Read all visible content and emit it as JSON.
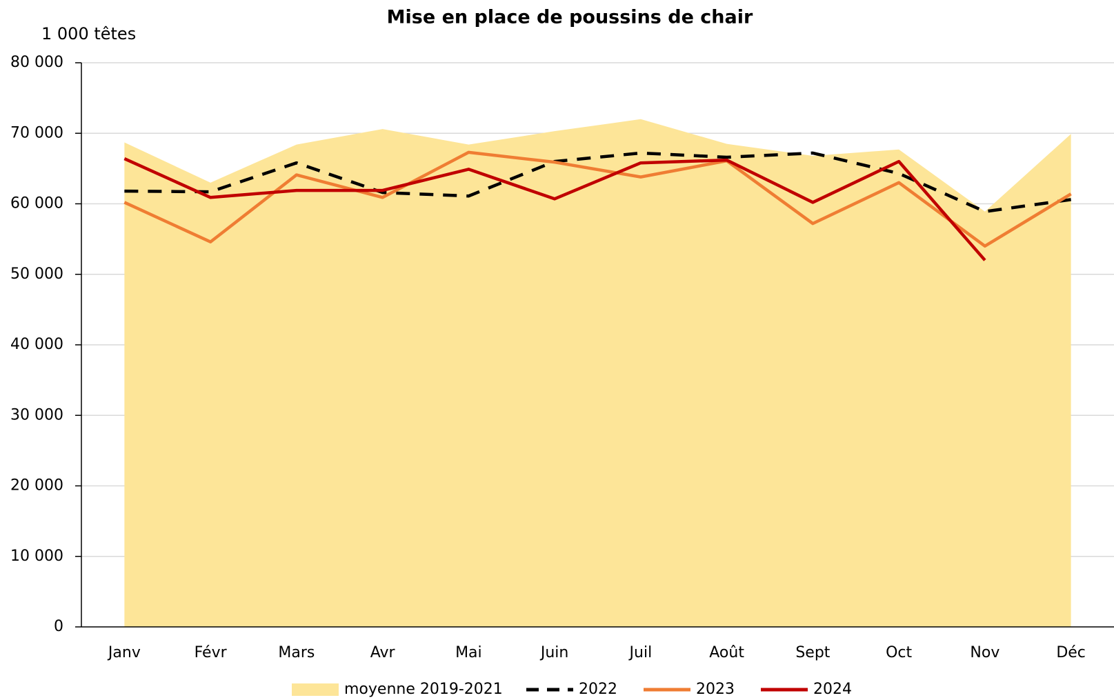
{
  "chart_data": {
    "type": "line",
    "title": "Mise en place de poussins de chair",
    "y_label": "1 000 têtes",
    "categories": [
      "Janv",
      "Févr",
      "Mars",
      "Avr",
      "Mai",
      "Juin",
      "Juil",
      "Août",
      "Sept",
      "Oct",
      "Nov",
      "Déc"
    ],
    "series": [
      {
        "name": "moyenne 2019-2021",
        "kind": "area",
        "color": "#fde598",
        "values": [
          68700,
          63000,
          68400,
          70600,
          68400,
          70300,
          72000,
          68500,
          66800,
          67700,
          58900,
          69900
        ]
      },
      {
        "name": "2022",
        "kind": "dashed",
        "color": "#000000",
        "values": [
          61800,
          61700,
          65800,
          61600,
          61100,
          66000,
          67200,
          66600,
          67200,
          64300,
          58900,
          60600
        ]
      },
      {
        "name": "2023",
        "kind": "line",
        "color": "#ef7d33",
        "values": [
          60200,
          54600,
          64100,
          60900,
          67300,
          65900,
          63800,
          66100,
          57200,
          63000,
          54000,
          61400
        ]
      },
      {
        "name": "2024",
        "kind": "line",
        "color": "#c00000",
        "values": [
          66400,
          60900,
          61900,
          61900,
          64900,
          60700,
          65800,
          66200,
          60200,
          66000,
          52000,
          null
        ]
      }
    ],
    "ylim": [
      0,
      80000
    ],
    "yticks": [
      {
        "value": 0,
        "label": "0"
      },
      {
        "value": 10000,
        "label": "10 000"
      },
      {
        "value": 20000,
        "label": "20 000"
      },
      {
        "value": 30000,
        "label": "30 000"
      },
      {
        "value": 40000,
        "label": "40 000"
      },
      {
        "value": 50000,
        "label": "50 000"
      },
      {
        "value": 60000,
        "label": "60 000"
      },
      {
        "value": 70000,
        "label": "70 000"
      },
      {
        "value": 80000,
        "label": "80 000"
      }
    ],
    "grid": true,
    "legend": "bottom"
  }
}
